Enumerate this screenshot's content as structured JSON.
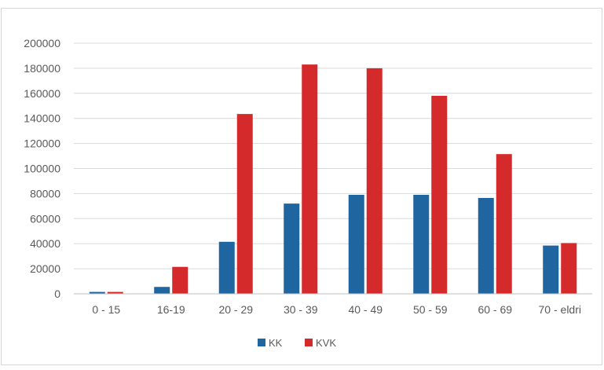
{
  "chart_data": {
    "type": "bar",
    "categories": [
      "0 - 15",
      "16-19",
      "20 - 29",
      "30 - 39",
      "40 - 49",
      "50 - 59",
      "60 - 69",
      "70 - eldri"
    ],
    "series": [
      {
        "name": "KK",
        "color": "#1f65a0",
        "values": [
          1500,
          5500,
          41500,
          72000,
          79000,
          79000,
          76500,
          38500
        ]
      },
      {
        "name": "KVK",
        "color": "#d42a2b",
        "values": [
          1500,
          21500,
          143500,
          183000,
          180000,
          158000,
          111500,
          40500
        ]
      }
    ],
    "yticks": [
      "0",
      "20000",
      "40000",
      "60000",
      "80000",
      "100000",
      "120000",
      "140000",
      "160000",
      "180000",
      "200000"
    ],
    "ylim": [
      0,
      200000
    ],
    "grid": true,
    "legend_position": "bottom-center"
  }
}
